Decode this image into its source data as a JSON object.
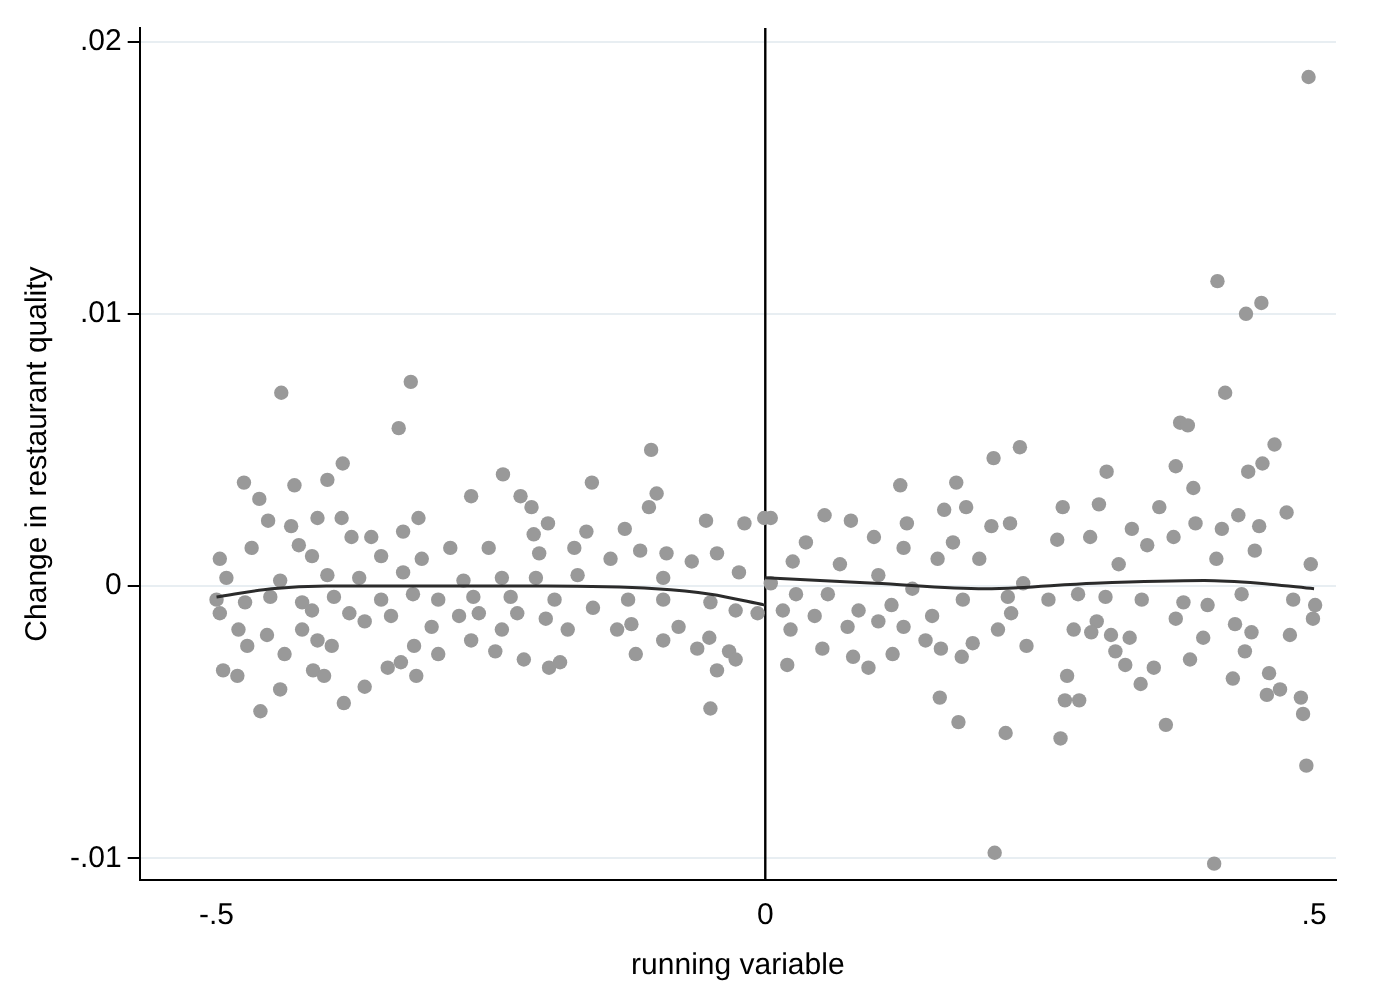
{
  "chart_data": {
    "type": "scatter",
    "xlabel": "running variable",
    "ylabel": "Change in restaurant quality",
    "xlim": [
      -0.57,
      0.52
    ],
    "ylim": [
      -0.0108,
      0.0205
    ],
    "xticks": [
      {
        "value": -0.5,
        "label": "-.5"
      },
      0,
      {
        "value": 0.5,
        "label": ".5"
      }
    ],
    "yticks": [
      {
        "value": -0.01,
        "label": "-.01"
      },
      0,
      {
        "value": 0.01,
        "label": ".01"
      },
      {
        "value": 0.02,
        "label": ".02"
      }
    ],
    "grid": "y",
    "legend": false,
    "ref_lines": [
      {
        "axis": "x",
        "value": 0,
        "color": "#000000"
      }
    ],
    "series": [
      {
        "color": "#999999",
        "marker": "circle",
        "x": [
          0.495,
          0.412,
          0.438,
          0.452,
          0.419,
          0.378,
          0.385,
          0.464,
          0.453,
          0.44,
          0.374,
          0.39,
          0.311,
          0.271,
          0.304,
          0.359,
          0.475,
          0.431,
          0.45,
          0.416,
          0.266,
          0.296,
          0.334,
          0.372,
          0.392,
          0.497,
          0.411,
          0.446,
          0.348,
          0.322,
          0.258,
          0.285,
          0.31,
          0.343,
          0.381,
          0.403,
          0.434,
          0.481,
          0.501,
          0.499,
          0.302,
          0.428,
          0.374,
          0.281,
          0.297,
          0.315,
          0.332,
          0.478,
          0.443,
          0.399,
          0.319,
          0.387,
          0.437,
          0.328,
          0.354,
          0.459,
          0.275,
          0.342,
          0.426,
          0.457,
          0.469,
          0.488,
          0.273,
          0.286,
          0.49,
          0.365,
          0.269,
          0.493,
          0.409,
          0.232,
          0.208,
          0.123,
          0.174,
          0.183,
          0.163,
          0.054,
          0.078,
          0.129,
          0.005,
          0.223,
          0.206,
          0.037,
          0.099,
          0.171,
          0.126,
          0.025,
          0.068,
          0.157,
          0.195,
          0.103,
          0.235,
          0.005,
          0.028,
          0.057,
          0.134,
          0.18,
          0.221,
          0.016,
          0.085,
          0.115,
          0.045,
          0.103,
          0.152,
          0.224,
          0.075,
          0.126,
          0.023,
          0.212,
          0.146,
          0.189,
          0.16,
          0.052,
          0.238,
          0.08,
          0.116,
          0.179,
          0.094,
          0.02,
          0.159,
          0.176,
          0.219,
          0.209,
          -0.104,
          -0.239,
          -0.158,
          -0.099,
          -0.106,
          -0.223,
          -0.213,
          -0.054,
          -0.019,
          -0.001,
          -0.198,
          -0.163,
          -0.128,
          -0.211,
          -0.252,
          -0.206,
          -0.174,
          -0.141,
          -0.114,
          -0.09,
          -0.067,
          -0.044,
          -0.024,
          -0.24,
          -0.209,
          -0.171,
          -0.093,
          -0.266,
          -0.232,
          -0.192,
          -0.157,
          -0.125,
          -0.093,
          -0.05,
          -0.027,
          -0.007,
          -0.261,
          -0.226,
          -0.2,
          -0.24,
          -0.18,
          -0.135,
          -0.122,
          -0.079,
          -0.051,
          -0.093,
          -0.062,
          -0.033,
          -0.246,
          -0.22,
          -0.197,
          -0.187,
          -0.118,
          -0.027,
          -0.044,
          -0.05,
          -0.441,
          -0.323,
          -0.334,
          -0.385,
          -0.475,
          -0.429,
          -0.399,
          -0.461,
          -0.268,
          -0.453,
          -0.432,
          -0.408,
          -0.386,
          -0.316,
          -0.377,
          -0.359,
          -0.33,
          -0.468,
          -0.497,
          -0.425,
          -0.287,
          -0.413,
          -0.35,
          -0.313,
          -0.491,
          -0.442,
          -0.399,
          -0.37,
          -0.33,
          -0.275,
          -0.5,
          -0.474,
          -0.451,
          -0.422,
          -0.393,
          -0.35,
          -0.321,
          -0.298,
          -0.497,
          -0.413,
          -0.379,
          -0.341,
          -0.279,
          -0.48,
          -0.454,
          -0.422,
          -0.365,
          -0.304,
          -0.472,
          -0.408,
          -0.395,
          -0.32,
          -0.268,
          -0.438,
          -0.298,
          -0.494,
          -0.481,
          -0.412,
          -0.402,
          -0.344,
          -0.332,
          -0.318,
          -0.442,
          -0.365,
          -0.46,
          -0.384
        ],
        "values": [
          0.0187,
          0.0112,
          0.01,
          0.0104,
          0.0071,
          0.006,
          0.0059,
          0.0052,
          0.0045,
          0.0042,
          0.0044,
          0.0036,
          0.0042,
          0.0029,
          0.003,
          0.0029,
          0.0027,
          0.0026,
          0.0022,
          0.0021,
          0.0017,
          0.0018,
          0.0021,
          0.0018,
          0.0023,
          0.0008,
          0.001,
          0.0013,
          0.0015,
          0.0008,
          -0.0005,
          -0.0003,
          -0.0004,
          -0.0005,
          -0.0006,
          -0.0007,
          -0.0003,
          -0.0005,
          -0.0007,
          -0.0012,
          -0.0013,
          -0.0014,
          -0.0012,
          -0.0016,
          -0.0017,
          -0.0018,
          -0.0019,
          -0.0018,
          -0.0017,
          -0.0019,
          -0.0024,
          -0.0027,
          -0.0024,
          -0.0029,
          -0.003,
          -0.0032,
          -0.0033,
          -0.0036,
          -0.0034,
          -0.004,
          -0.0038,
          -0.0041,
          -0.0042,
          -0.0042,
          -0.0047,
          -0.0051,
          -0.0056,
          -0.0066,
          -0.0102,
          0.0051,
          0.0047,
          0.0037,
          0.0038,
          0.0029,
          0.0028,
          0.0026,
          0.0024,
          0.0023,
          0.0025,
          0.0023,
          0.0022,
          0.0016,
          0.0018,
          0.0016,
          0.0014,
          0.0009,
          0.0008,
          0.001,
          0.001,
          0.0004,
          0.0001,
          0.0001,
          -0.0003,
          -0.0003,
          -0.0001,
          -0.0005,
          -0.0004,
          -0.0009,
          -0.0009,
          -0.0007,
          -0.0011,
          -0.0013,
          -0.0011,
          -0.001,
          -0.0015,
          -0.0015,
          -0.0016,
          -0.0016,
          -0.002,
          -0.0021,
          -0.0023,
          -0.0023,
          -0.0022,
          -0.0026,
          -0.0025,
          -0.0026,
          -0.003,
          -0.0029,
          -0.0041,
          -0.005,
          -0.0054,
          -0.0098,
          0.005,
          0.0041,
          0.0038,
          0.0034,
          0.0029,
          0.0033,
          0.0029,
          0.0024,
          0.0023,
          0.0025,
          0.0023,
          0.002,
          0.0021,
          0.0019,
          0.0014,
          0.0012,
          0.0014,
          0.001,
          0.0013,
          0.0012,
          0.0009,
          0.0012,
          0.0005,
          0.0003,
          0.0003,
          0.0004,
          0.0003,
          -0.0004,
          -0.0004,
          -0.0005,
          -0.0008,
          -0.0005,
          -0.0005,
          -0.0006,
          -0.0009,
          -0.001,
          -0.001,
          -0.001,
          -0.0012,
          -0.0016,
          -0.0016,
          -0.0016,
          -0.0014,
          -0.0015,
          -0.0019,
          -0.002,
          -0.0023,
          -0.0024,
          -0.0024,
          -0.0027,
          -0.003,
          -0.0028,
          -0.0025,
          -0.0027,
          -0.0031,
          -0.0045,
          0.0071,
          0.0075,
          0.0058,
          0.0045,
          0.0038,
          0.0037,
          0.0039,
          0.0032,
          0.0033,
          0.0024,
          0.0022,
          0.0025,
          0.0025,
          0.0025,
          0.0018,
          0.0018,
          0.002,
          0.0014,
          0.001,
          0.0015,
          0.0014,
          0.0011,
          0.0011,
          0.001,
          0.0003,
          0.0002,
          0.0004,
          0.0003,
          0.0005,
          0.0002,
          -0.0005,
          -0.0006,
          -0.0004,
          -0.0006,
          -0.0004,
          -0.0005,
          -0.0003,
          -0.0005,
          -0.001,
          -0.0009,
          -0.001,
          -0.0011,
          -0.0011,
          -0.0016,
          -0.0018,
          -0.0016,
          -0.0013,
          -0.0015,
          -0.0022,
          -0.002,
          -0.0022,
          -0.0022,
          -0.002,
          -0.0025,
          -0.0025,
          -0.0031,
          -0.0033,
          -0.0031,
          -0.0033,
          -0.003,
          -0.0028,
          -0.0033,
          -0.0038,
          -0.0037,
          -0.0046,
          -0.0043
        ]
      },
      {
        "type": "line",
        "color": "#2b2b2b",
        "marker": "none",
        "x": [
          -0.5,
          -0.45,
          -0.4,
          -0.3,
          -0.2,
          -0.1,
          -0.05,
          0
        ],
        "values": [
          -0.0004,
          -0.0001,
          0.0,
          0.0,
          0.0,
          -0.0001,
          -0.0003,
          -0.0007
        ]
      },
      {
        "type": "line",
        "color": "#2b2b2b",
        "marker": "none",
        "x": [
          0,
          0.1,
          0.2,
          0.3,
          0.4,
          0.45,
          0.5
        ],
        "values": [
          0.0003,
          0.0001,
          -0.0001,
          0.0001,
          0.0002,
          0.0001,
          -0.0001
        ]
      }
    ]
  }
}
